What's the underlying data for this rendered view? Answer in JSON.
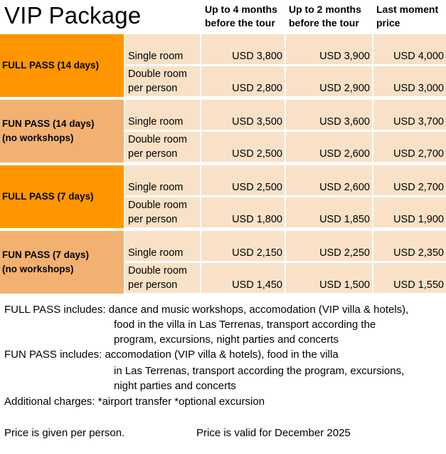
{
  "title": "VIP Package",
  "headers": [
    [
      "Up to 4 months",
      "before the tour"
    ],
    [
      "Up to 2 months",
      "before the tour"
    ],
    [
      "Last moment",
      "price"
    ]
  ],
  "packages": [
    {
      "name": [
        "FULL PASS (14 days)"
      ],
      "color": "#ff9600",
      "rows": [
        {
          "room": [
            "Single room"
          ],
          "prices": [
            "USD 3,800",
            "USD 3,900",
            "USD 4,000"
          ]
        },
        {
          "room": [
            "Double room",
            "per person"
          ],
          "prices": [
            "USD 2,800",
            "USD 2,900",
            "USD 3,000"
          ]
        }
      ]
    },
    {
      "name": [
        "FUN PASS (14 days)",
        "(no workshops)"
      ],
      "color": "#f2b171",
      "rows": [
        {
          "room": [
            "Single room"
          ],
          "prices": [
            "USD 3,500",
            "USD 3,600",
            "USD 3,700"
          ]
        },
        {
          "room": [
            "Double room",
            "per person"
          ],
          "prices": [
            "USD 2,500",
            "USD 2,600",
            "USD 2,700"
          ]
        }
      ]
    },
    {
      "name": [
        "FULL PASS (7 days)"
      ],
      "color": "#ff9600",
      "rows": [
        {
          "room": [
            "Single room"
          ],
          "prices": [
            "USD 2,500",
            "USD 2,600",
            "USD 2,700"
          ]
        },
        {
          "room": [
            "Double room",
            "per person"
          ],
          "prices": [
            "USD 1,800",
            "USD 1,850",
            "USD 1,900"
          ]
        }
      ]
    },
    {
      "name": [
        "FUN PASS (7 days)",
        "(no workshops)"
      ],
      "color": "#f2b171",
      "rows": [
        {
          "room": [
            "Single room"
          ],
          "prices": [
            "USD 2,150",
            "USD 2,250",
            "USD 2,350"
          ]
        },
        {
          "room": [
            "Double room",
            "per person"
          ],
          "prices": [
            "USD 1,450",
            "USD 1,500",
            "USD 1,550"
          ]
        }
      ]
    }
  ],
  "cell_color": "#f9e1c7",
  "notes": {
    "full_pass": [
      "FULL PASS includes: dance and music workshops, accomodation (VIP villa & hotels),",
      "food in the villa in Las Terrenas, transport according the",
      "program, excursions, night parties and concerts"
    ],
    "fun_pass": [
      "FUN PASS includes: accomodation (VIP villa & hotels), food in the villa",
      "in Las Terrenas, transport according the program, excursions,",
      "night parties and concerts"
    ],
    "additional": "Additional charges:  *airport transfer *optional excursion",
    "per_person": "Price is given per person.",
    "valid": "Price is valid for December 2025"
  }
}
